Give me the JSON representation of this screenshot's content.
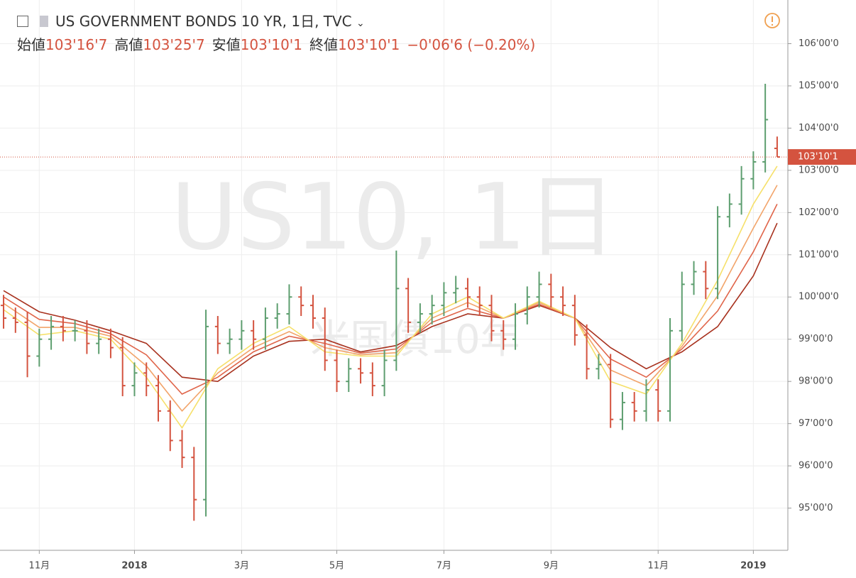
{
  "chart_data": {
    "type": "ohlc",
    "title": "US GOVERNMENT BONDS 10 YR, 1日, TVC",
    "legend": [
      {
        "name": "始値",
        "label": "103'16'7"
      },
      {
        "name": "高値",
        "label": "103'25'7"
      },
      {
        "name": "安値",
        "label": "103'10'1"
      },
      {
        "name": "終値",
        "label": "103'10'1"
      }
    ],
    "change_label": "−0'06'6 (−0.20%)",
    "watermark": "US10, 1日",
    "watermark_sub": "米国債10年",
    "last_price": {
      "value": 103.316,
      "label": "103'10'1"
    },
    "up_color": "#5d9e6f",
    "down_color": "#d4533f",
    "grid": true,
    "categories": [
      null,
      null,
      null,
      "11月",
      null,
      null,
      null,
      null,
      null,
      null,
      null,
      "2018",
      null,
      null,
      null,
      null,
      null,
      null,
      null,
      null,
      "3月",
      null,
      null,
      null,
      null,
      null,
      null,
      null,
      "5月",
      null,
      null,
      null,
      null,
      null,
      null,
      null,
      null,
      "7月",
      null,
      null,
      null,
      null,
      null,
      null,
      null,
      null,
      "9月",
      null,
      null,
      null,
      null,
      null,
      null,
      null,
      null,
      "11月",
      null,
      null,
      null,
      null,
      null,
      null,
      null,
      "2019",
      null,
      null
    ],
    "xlim": [
      -0.3,
      65.9
    ],
    "open": [
      99.8,
      99.5,
      99.4,
      98.6,
      99.0,
      99.3,
      99.2,
      99.2,
      98.9,
      99.0,
      98.8,
      97.9,
      98.2,
      97.9,
      97.3,
      96.6,
      96.2,
      95.2,
      99.3,
      98.9,
      99.0,
      99.2,
      99.0,
      99.5,
      99.6,
      100.0,
      99.8,
      99.5,
      98.5,
      98.0,
      98.3,
      98.2,
      97.9,
      98.5,
      100.2,
      99.4,
      99.6,
      99.8,
      100.1,
      100.2,
      100.0,
      99.8,
      99.2,
      99.0,
      99.6,
      100.0,
      100.3,
      100.0,
      99.8,
      99.1,
      98.3,
      98.4,
      97.1,
      97.5,
      97.3,
      97.8,
      97.3,
      99.2,
      100.3,
      100.6,
      100.2,
      101.9,
      102.2,
      102.8,
      103.2,
      103.52
    ],
    "high": [
      100.05,
      99.75,
      99.65,
      99.25,
      99.55,
      99.55,
      99.45,
      99.45,
      99.25,
      99.25,
      99.05,
      98.45,
      98.45,
      98.15,
      97.55,
      96.85,
      96.45,
      99.7,
      99.55,
      99.25,
      99.45,
      99.45,
      99.75,
      99.85,
      100.3,
      100.25,
      100.05,
      99.75,
      98.75,
      98.55,
      98.55,
      98.45,
      98.75,
      101.1,
      100.45,
      99.85,
      100.05,
      100.35,
      100.5,
      100.45,
      100.25,
      100.05,
      99.45,
      99.85,
      100.25,
      100.6,
      100.55,
      100.25,
      100.05,
      99.35,
      98.65,
      98.65,
      97.75,
      97.75,
      98.05,
      98.05,
      99.5,
      100.6,
      100.85,
      100.85,
      102.15,
      102.45,
      103.1,
      103.45,
      105.05,
      103.8
    ],
    "low": [
      99.25,
      99.15,
      98.1,
      98.35,
      98.75,
      98.95,
      98.95,
      98.65,
      98.65,
      98.55,
      97.65,
      97.65,
      97.65,
      97.05,
      96.35,
      95.95,
      94.7,
      94.8,
      98.65,
      98.65,
      98.75,
      98.75,
      98.75,
      99.25,
      99.35,
      99.55,
      99.25,
      98.25,
      97.75,
      97.75,
      97.95,
      97.65,
      97.65,
      98.25,
      99.15,
      99.15,
      99.35,
      99.55,
      99.85,
      99.75,
      99.55,
      98.95,
      98.75,
      98.75,
      99.35,
      99.75,
      99.75,
      99.55,
      98.85,
      98.05,
      98.05,
      96.9,
      96.85,
      97.05,
      97.05,
      97.05,
      97.05,
      98.95,
      100.05,
      99.95,
      99.95,
      101.65,
      101.95,
      102.55,
      102.95,
      103.316
    ],
    "close": [
      99.5,
      99.4,
      98.6,
      99.0,
      99.3,
      99.2,
      99.2,
      98.9,
      99.0,
      98.8,
      97.9,
      98.2,
      97.9,
      97.3,
      96.6,
      96.2,
      95.2,
      99.3,
      98.9,
      99.0,
      99.2,
      99.0,
      99.5,
      99.6,
      100.0,
      99.8,
      99.5,
      98.5,
      98.0,
      98.3,
      98.2,
      97.9,
      98.5,
      100.2,
      99.4,
      99.6,
      99.8,
      100.1,
      100.2,
      100.0,
      99.8,
      99.2,
      99.0,
      99.6,
      100.0,
      100.3,
      100.0,
      99.8,
      99.1,
      98.3,
      98.4,
      97.1,
      97.5,
      97.3,
      97.8,
      97.3,
      99.2,
      100.3,
      100.6,
      100.2,
      101.9,
      102.2,
      102.8,
      103.2,
      104.2,
      103.316
    ],
    "series": [
      {
        "color": "#a8321f",
        "x": [
          0,
          3,
          6,
          9,
          12,
          15,
          18,
          21,
          24,
          27,
          30,
          33,
          36,
          39,
          42,
          45,
          48,
          51,
          54,
          57,
          60,
          63,
          65
        ],
        "values": [
          100.15,
          99.65,
          99.45,
          99.2,
          98.9,
          98.1,
          98.0,
          98.6,
          98.95,
          99.0,
          98.7,
          98.85,
          99.3,
          99.6,
          99.5,
          99.8,
          99.5,
          98.8,
          98.3,
          98.7,
          99.3,
          100.5,
          101.75
        ]
      },
      {
        "color": "#e0654a",
        "x": [
          0,
          3,
          6,
          9,
          12,
          15,
          18,
          21,
          24,
          27,
          30,
          33,
          36,
          39,
          42,
          45,
          48,
          51,
          54,
          57,
          60,
          63,
          65
        ],
        "values": [
          100.0,
          99.47,
          99.37,
          99.13,
          98.63,
          97.7,
          98.1,
          98.7,
          99.07,
          98.9,
          98.67,
          98.77,
          99.4,
          99.73,
          99.5,
          99.83,
          99.5,
          98.53,
          98.1,
          98.77,
          99.67,
          101.07,
          102.2
        ]
      },
      {
        "color": "#f2a46a",
        "x": [
          0,
          3,
          6,
          9,
          12,
          15,
          18,
          21,
          24,
          27,
          30,
          33,
          36,
          39,
          42,
          45,
          48,
          51,
          54,
          57,
          60,
          63,
          65
        ],
        "values": [
          99.85,
          99.28,
          99.28,
          99.07,
          98.37,
          97.3,
          98.2,
          98.8,
          99.18,
          98.8,
          98.63,
          98.68,
          99.5,
          99.87,
          99.5,
          99.87,
          99.5,
          98.27,
          97.9,
          98.83,
          100.03,
          101.63,
          102.65
        ]
      },
      {
        "color": "#f6e06a",
        "x": [
          0,
          3,
          6,
          9,
          12,
          15,
          18,
          21,
          24,
          27,
          30,
          33,
          36,
          39,
          42,
          45,
          48,
          51,
          54,
          57,
          60,
          63,
          65
        ],
        "values": [
          99.7,
          99.1,
          99.2,
          99.0,
          98.1,
          96.9,
          98.3,
          98.9,
          99.3,
          98.7,
          98.6,
          98.6,
          99.6,
          100.0,
          99.5,
          99.9,
          99.5,
          98.0,
          97.7,
          98.9,
          100.4,
          102.2,
          103.1
        ]
      }
    ],
    "ylim": [
      94.0,
      106.95
    ],
    "yticks": [
      {
        "value": 95,
        "label": "95'00'0"
      },
      {
        "value": 96,
        "label": "96'00'0"
      },
      {
        "value": 97,
        "label": "97'00'0"
      },
      {
        "value": 98,
        "label": "98'00'0"
      },
      {
        "value": 99,
        "label": "99'00'0"
      },
      {
        "value": 100,
        "label": "100'00'0"
      },
      {
        "value": 101,
        "label": "101'00'0"
      },
      {
        "value": 102,
        "label": "102'00'0"
      },
      {
        "value": 103,
        "label": "103'00'0"
      },
      {
        "value": 104,
        "label": "104'00'0"
      },
      {
        "value": 105,
        "label": "105'00'0"
      },
      {
        "value": 106,
        "label": "106'00'0"
      }
    ]
  }
}
